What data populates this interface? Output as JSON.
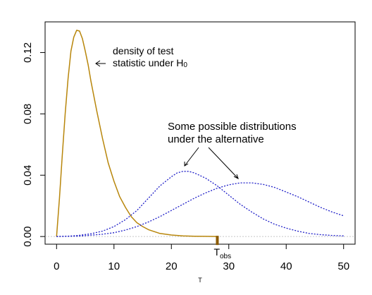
{
  "chart_data": {
    "type": "line",
    "xlabel": "T",
    "ylabel": "",
    "xlim": [
      -2,
      52
    ],
    "ylim": [
      -0.005,
      0.14
    ],
    "x_ticks": [
      0,
      10,
      20,
      30,
      40,
      50
    ],
    "y_ticks": [
      0.0,
      0.04,
      0.08,
      0.12
    ],
    "x_tick_labels": [
      "0",
      "10",
      "20",
      "30",
      "40",
      "50"
    ],
    "y_tick_labels": [
      "0.00",
      "0.04",
      "0.08",
      "0.12"
    ],
    "grid": false,
    "colors": {
      "null": "#b8860b",
      "alt": "#1f1fc8",
      "zero_line": "#c8c8c8",
      "obs": "#8b5a00"
    },
    "series": [
      {
        "style": "solid",
        "x": [
          0,
          0.5,
          1,
          1.5,
          2,
          2.5,
          3,
          3.5,
          4,
          4.5,
          5,
          5.5,
          6,
          7,
          8,
          9,
          10,
          11,
          12,
          13,
          14,
          15,
          16,
          18,
          20,
          22,
          24,
          26,
          28
        ],
        "values": [
          0,
          0.025,
          0.053,
          0.08,
          0.103,
          0.121,
          0.13,
          0.1345,
          0.134,
          0.129,
          0.121,
          0.112,
          0.101,
          0.082,
          0.064,
          0.048,
          0.036,
          0.026,
          0.019,
          0.013,
          0.009,
          0.0065,
          0.0045,
          0.002,
          0.001,
          0.0004,
          0.0002,
          0.0001,
          0
        ]
      },
      {
        "style": "dotted",
        "x": [
          0,
          2,
          4,
          6,
          8,
          10,
          12,
          14,
          16,
          18,
          20,
          21,
          22,
          23,
          24,
          26,
          28,
          30,
          32,
          34,
          36,
          38,
          40,
          42,
          44,
          46,
          48,
          50
        ],
        "values": [
          0,
          0.0002,
          0.0008,
          0.0018,
          0.0035,
          0.0065,
          0.011,
          0.017,
          0.025,
          0.033,
          0.039,
          0.0415,
          0.0425,
          0.0425,
          0.0415,
          0.038,
          0.033,
          0.027,
          0.021,
          0.016,
          0.0115,
          0.008,
          0.0055,
          0.0035,
          0.002,
          0.0012,
          0.0007,
          0.0004
        ]
      },
      {
        "style": "dotted",
        "x": [
          0,
          4,
          8,
          10,
          12,
          14,
          16,
          18,
          20,
          22,
          24,
          26,
          28,
          30,
          32,
          34,
          36,
          38,
          40,
          42,
          44,
          46,
          48,
          50
        ],
        "values": [
          0,
          0.0003,
          0.0015,
          0.0025,
          0.0042,
          0.0065,
          0.0095,
          0.013,
          0.017,
          0.021,
          0.025,
          0.0285,
          0.0315,
          0.0337,
          0.035,
          0.035,
          0.034,
          0.032,
          0.029,
          0.026,
          0.0225,
          0.019,
          0.016,
          0.0135
        ]
      }
    ],
    "t_obs": {
      "x": 28,
      "label_main": "T",
      "label_sub": "obs"
    },
    "annotations": {
      "null_line1": "density of test",
      "null_line2": "statistic under H",
      "null_sub": "0",
      "alt_line1": "Some possible distributions",
      "alt_line2": "under the alternative"
    }
  }
}
